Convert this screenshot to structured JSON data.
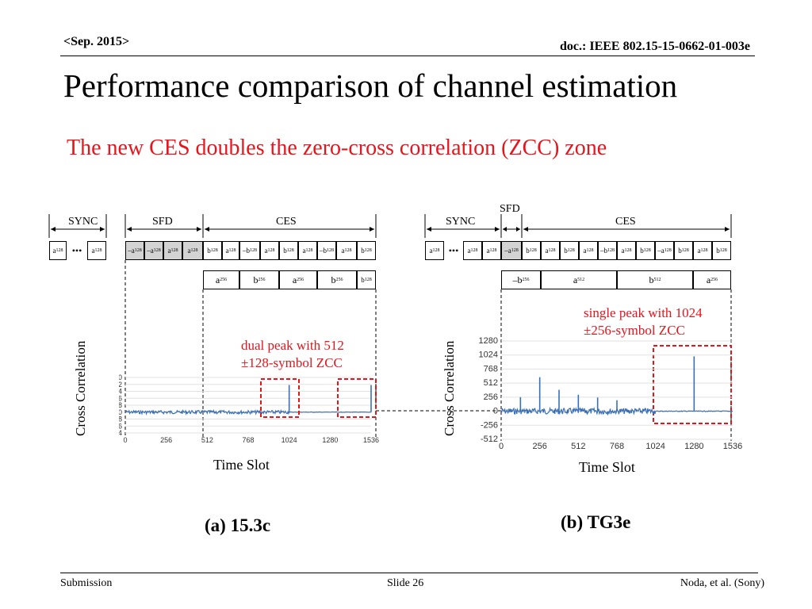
{
  "header": {
    "date": "<Sep. 2015>",
    "doc": "doc.: IEEE 802.15-15-0662-01-003e"
  },
  "title": "Performance comparison of channel estimation",
  "subtitle": "The new CES doubles the zero-cross correlation (ZCC)  zone",
  "panel_a": {
    "labels": {
      "sync": "SYNC",
      "sfd": "SFD",
      "ces": "CES"
    },
    "row1": [
      "a128",
      "•••",
      "a128",
      "–a128",
      "–a128",
      "a128",
      "a128",
      "b128",
      "a128",
      "–b128",
      "a128",
      "b128",
      "a128",
      "–b128",
      "a128",
      "b128"
    ],
    "row2": [
      "a256",
      "b256",
      "a256",
      "b256",
      "b128"
    ],
    "annotation": [
      "dual peak with 512",
      "±128-symbol ZCC"
    ],
    "ylabel": "Cross Correlation",
    "xlabel": "Time Slot",
    "caption": "(a) 15.3c"
  },
  "panel_b": {
    "labels": {
      "sync": "SYNC",
      "sfd": "SFD",
      "ces": "CES"
    },
    "row1": [
      "a128",
      "•••",
      "a128",
      "a128",
      "–a128",
      "b128",
      "a128",
      "b128",
      "a128",
      "–b128",
      "a128",
      "b128",
      "–a128",
      "b128",
      "a128",
      "b128"
    ],
    "row2": [
      "–b256",
      "a512",
      "b512",
      "a256"
    ],
    "annotation": [
      "single peak with 1024",
      "±256-symbol ZCC"
    ],
    "ylabel": "Cross Correlation",
    "xlabel": "Time Slot",
    "caption": "(b) TG3e"
  },
  "chart_data": [
    {
      "type": "line",
      "xlim": [
        0,
        1536
      ],
      "xticks": [
        0,
        256,
        512,
        768,
        1024,
        1280,
        1536
      ],
      "ylim": [
        -384,
        640
      ],
      "yticks": [
        -384,
        -256,
        -128,
        0,
        128,
        256,
        384,
        512,
        640
      ],
      "peaks": [
        {
          "x": 1024,
          "y": 500
        },
        {
          "x": 1536,
          "y": 500
        }
      ],
      "color": "#3a6fb5"
    },
    {
      "type": "line",
      "xlim": [
        0,
        1536
      ],
      "xticks": [
        0,
        256,
        512,
        768,
        1024,
        1280,
        1536
      ],
      "ylim": [
        -512,
        1280
      ],
      "yticks": [
        -512,
        -256,
        0,
        256,
        512,
        768,
        1024,
        1280
      ],
      "peaks": [
        {
          "x": 128,
          "y": 256
        },
        {
          "x": 256,
          "y": 620
        },
        {
          "x": 384,
          "y": 390
        },
        {
          "x": 512,
          "y": 300
        },
        {
          "x": 640,
          "y": 250
        },
        {
          "x": 768,
          "y": 200
        },
        {
          "x": 1280,
          "y": 1000
        }
      ],
      "color": "#3a6fb5"
    }
  ],
  "footer": {
    "left": "Submission",
    "center": "Slide 26",
    "right": "Noda, et al. (Sony)"
  },
  "colors": {
    "accent": "#e8141c",
    "line": "#3a6fb5"
  }
}
